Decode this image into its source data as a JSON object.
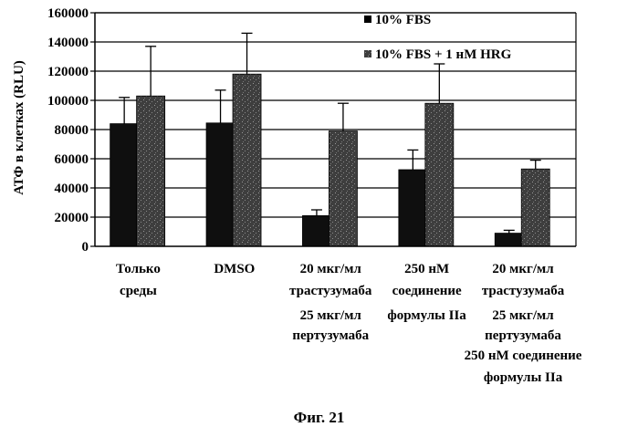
{
  "caption": "Фиг. 21",
  "chart_data": {
    "type": "bar",
    "ylabel": "АТФ в клетках (RLU)",
    "xlabel": "",
    "ylim": [
      0,
      160000
    ],
    "yticks": [
      0,
      20000,
      40000,
      60000,
      80000,
      100000,
      120000,
      140000,
      160000
    ],
    "ytick_labels": [
      "0",
      "20000",
      "40000",
      "60000",
      "80000",
      "100000",
      "120000",
      "140000",
      "160000"
    ],
    "grid": true,
    "legend": "top-right",
    "categories": [
      [
        "Только",
        "среды"
      ],
      [
        "DMSO"
      ],
      [
        "20 мкг/мл",
        "трастузумаба",
        "25 мкг/мл",
        "пертузумаба"
      ],
      [
        "250 нМ",
        "соединение",
        "формулы IIa"
      ],
      [
        "20 мкг/мл",
        "трастузумаба",
        "25 мкг/мл",
        "пертузумаба",
        "250 нМ соединение",
        "формулы IIa"
      ]
    ],
    "series": [
      {
        "name": "10% FBS",
        "color": "#111111",
        "values": [
          84000,
          84500,
          21000,
          52500,
          9000
        ],
        "errors": [
          102000,
          107000,
          25000,
          66000,
          11000
        ]
      },
      {
        "name": "10% FBS + 1 нМ HRG",
        "color": "#454545",
        "values": [
          103000,
          118000,
          79000,
          98000,
          53000
        ],
        "errors": [
          137000,
          146000,
          98000,
          125000,
          59000
        ]
      }
    ]
  }
}
